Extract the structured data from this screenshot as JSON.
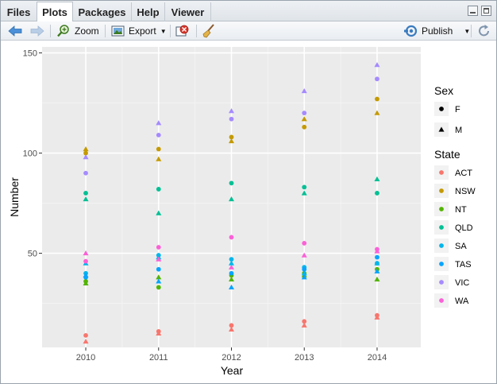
{
  "tabs": [
    {
      "label": "Files",
      "active": false
    },
    {
      "label": "Plots",
      "active": true
    },
    {
      "label": "Packages",
      "active": false
    },
    {
      "label": "Help",
      "active": false
    },
    {
      "label": "Viewer",
      "active": false
    }
  ],
  "toolbar": {
    "zoom_label": "Zoom",
    "export_label": "Export",
    "publish_label": "Publish"
  },
  "icons": [
    "back-arrow-icon",
    "forward-arrow-icon",
    "zoom-icon",
    "export-icon",
    "remove-plot-icon",
    "broom-icon",
    "publish-icon",
    "refresh-icon"
  ],
  "chart_data": {
    "type": "scatter",
    "xlabel": "Year",
    "ylabel": "Number",
    "x_ticks": [
      2010,
      2011,
      2012,
      2013,
      2014
    ],
    "y_ticks": [
      50,
      100,
      150
    ],
    "ylim": [
      0,
      150
    ],
    "legend_placement": "right",
    "shape_legend": {
      "title": "Sex",
      "entries": [
        {
          "label": "F",
          "shape": "circle"
        },
        {
          "label": "M",
          "shape": "triangle"
        }
      ]
    },
    "color_legend": {
      "title": "State",
      "entries": [
        {
          "label": "ACT",
          "color": "#F8766D"
        },
        {
          "label": "NSW",
          "color": "#C49A00"
        },
        {
          "label": "NT",
          "color": "#53B400"
        },
        {
          "label": "QLD",
          "color": "#00C094"
        },
        {
          "label": "SA",
          "color": "#00B6EB"
        },
        {
          "label": "TAS",
          "color": "#06A4FF"
        },
        {
          "label": "VIC",
          "color": "#A58AFF"
        },
        {
          "label": "WA",
          "color": "#FB61D7"
        }
      ]
    },
    "series": [
      {
        "state": "ACT",
        "sex": "F",
        "x": [
          2010,
          2011,
          2012,
          2013,
          2014
        ],
        "y": [
          9,
          11,
          14,
          16,
          19
        ]
      },
      {
        "state": "ACT",
        "sex": "M",
        "x": [
          2010,
          2011,
          2012,
          2013,
          2014
        ],
        "y": [
          6,
          10,
          12,
          14,
          18
        ]
      },
      {
        "state": "NSW",
        "sex": "F",
        "x": [
          2010,
          2011,
          2012,
          2013,
          2014
        ],
        "y": [
          100,
          102,
          108,
          113,
          127
        ]
      },
      {
        "state": "NSW",
        "sex": "M",
        "x": [
          2010,
          2011,
          2012,
          2013,
          2014
        ],
        "y": [
          102,
          97,
          106,
          117,
          120
        ]
      },
      {
        "state": "NT",
        "sex": "F",
        "x": [
          2010,
          2011,
          2012,
          2013,
          2014
        ],
        "y": [
          36,
          33,
          39,
          40,
          42
        ]
      },
      {
        "state": "NT",
        "sex": "M",
        "x": [
          2010,
          2011,
          2012,
          2013,
          2014
        ],
        "y": [
          35,
          38,
          37,
          39,
          37
        ]
      },
      {
        "state": "QLD",
        "sex": "F",
        "x": [
          2010,
          2011,
          2012,
          2013,
          2014
        ],
        "y": [
          80,
          82,
          85,
          83,
          80
        ]
      },
      {
        "state": "QLD",
        "sex": "M",
        "x": [
          2010,
          2011,
          2012,
          2013,
          2014
        ],
        "y": [
          77,
          70,
          77,
          80,
          87
        ]
      },
      {
        "state": "SA",
        "sex": "F",
        "x": [
          2010,
          2011,
          2012,
          2013,
          2014
        ],
        "y": [
          40,
          49,
          47,
          43,
          45
        ]
      },
      {
        "state": "SA",
        "sex": "M",
        "x": [
          2010,
          2011,
          2012,
          2013,
          2014
        ],
        "y": [
          45,
          48,
          45,
          40,
          45
        ]
      },
      {
        "state": "TAS",
        "sex": "F",
        "x": [
          2010,
          2011,
          2012,
          2013,
          2014
        ],
        "y": [
          38,
          42,
          40,
          42,
          48
        ]
      },
      {
        "state": "TAS",
        "sex": "M",
        "x": [
          2010,
          2011,
          2012,
          2013,
          2014
        ],
        "y": [
          39,
          36,
          33,
          38,
          41
        ]
      },
      {
        "state": "VIC",
        "sex": "F",
        "x": [
          2010,
          2011,
          2012,
          2013,
          2014
        ],
        "y": [
          90,
          109,
          117,
          120,
          137
        ]
      },
      {
        "state": "VIC",
        "sex": "M",
        "x": [
          2010,
          2011,
          2012,
          2013,
          2014
        ],
        "y": [
          98,
          115,
          121,
          131,
          144
        ]
      },
      {
        "state": "WA",
        "sex": "F",
        "x": [
          2010,
          2011,
          2012,
          2013,
          2014
        ],
        "y": [
          46,
          53,
          58,
          55,
          52
        ]
      },
      {
        "state": "WA",
        "sex": "M",
        "x": [
          2010,
          2011,
          2012,
          2013,
          2014
        ],
        "y": [
          50,
          47,
          43,
          49,
          51
        ]
      }
    ]
  }
}
